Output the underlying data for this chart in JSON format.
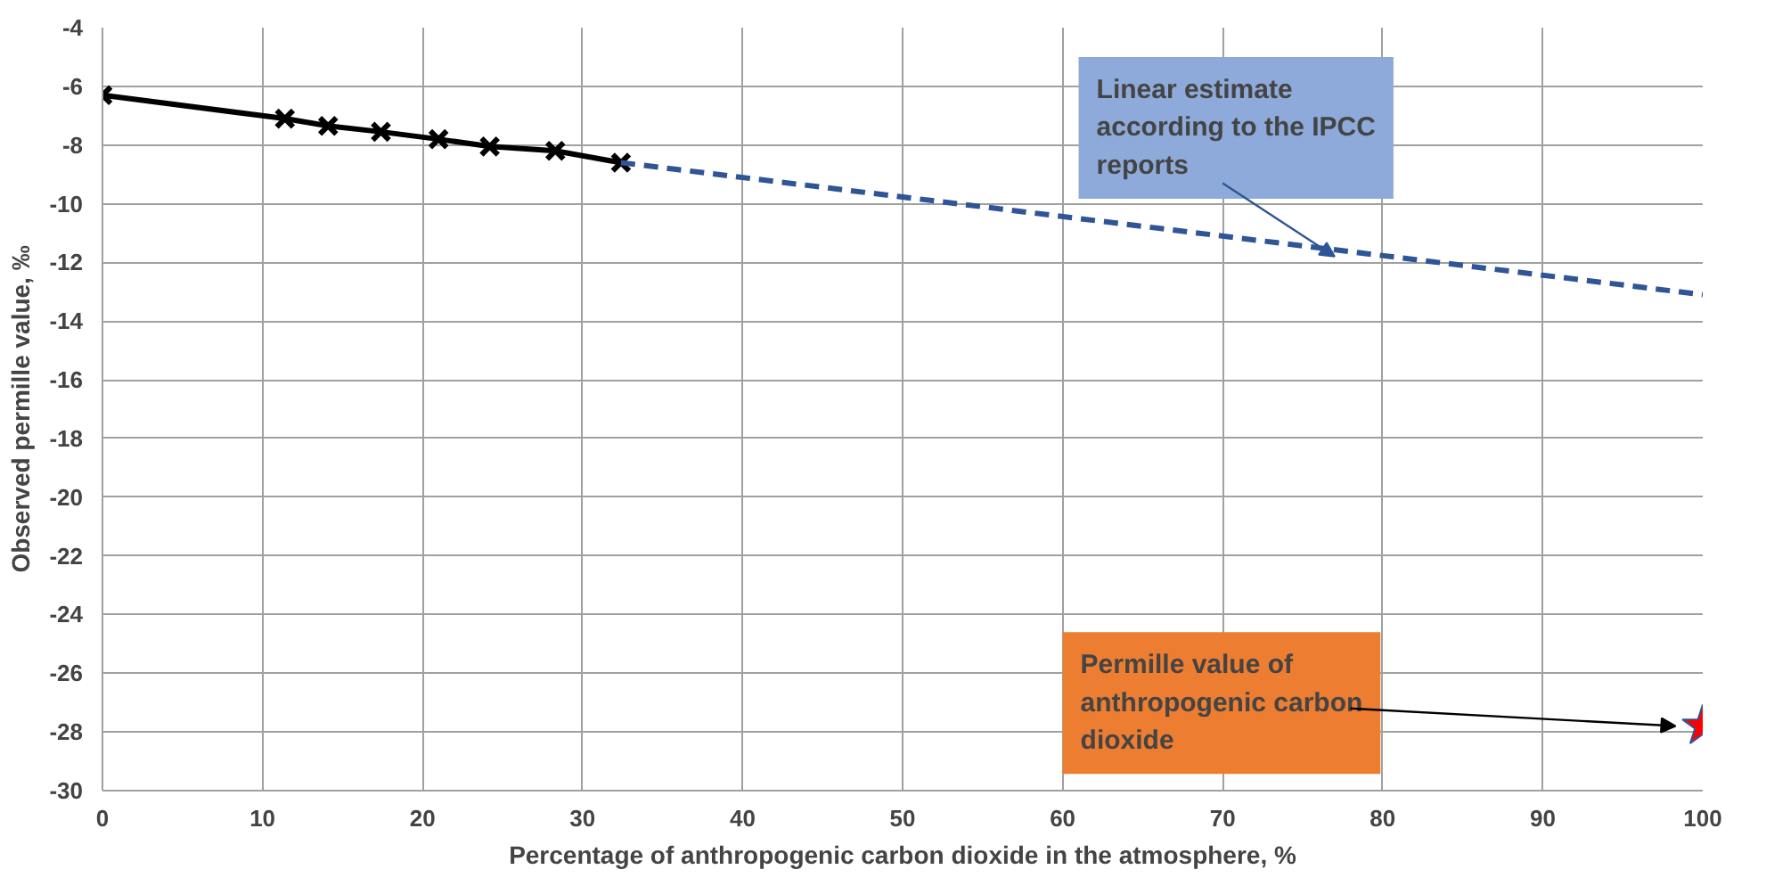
{
  "chart_data": {
    "type": "line",
    "xlabel": "Percentage of anthropogenic carbon dioxide in the atmosphere, %",
    "ylabel": "Observed permille value, ‰",
    "xlim": [
      0,
      100
    ],
    "ylim": [
      -30,
      -4
    ],
    "xticks": [
      0,
      10,
      20,
      30,
      40,
      50,
      60,
      70,
      80,
      90,
      100
    ],
    "yticks": [
      -30,
      -28,
      -26,
      -24,
      -22,
      -20,
      -18,
      -16,
      -14,
      -12,
      -10,
      -8,
      -6,
      -4
    ],
    "grid": true,
    "series": [
      {
        "color": "#000000",
        "marker": "cross",
        "line_style": "solid",
        "x": [
          0,
          11.4,
          14.1,
          17.4,
          21.0,
          24.2,
          28.3,
          32.4
        ],
        "values": [
          -6.3,
          -7.1,
          -7.35,
          -7.55,
          -7.8,
          -8.05,
          -8.2,
          -8.6
        ]
      },
      {
        "color": "#2f5597",
        "marker": "none",
        "line_style": "dashed",
        "x": [
          32.4,
          100
        ],
        "values": [
          -8.6,
          -13.1
        ]
      },
      {
        "type": "scatter",
        "color": "#ff0000",
        "marker": "star",
        "x": [
          100
        ],
        "values": [
          -27.8
        ]
      }
    ],
    "annotations": [
      {
        "text": "Linear estimate\naccording to the IPCC\nreports",
        "x": 77,
        "y": -11.8
      },
      "Permille value of\nanthropogenic carbon\ndioxide"
    ]
  }
}
